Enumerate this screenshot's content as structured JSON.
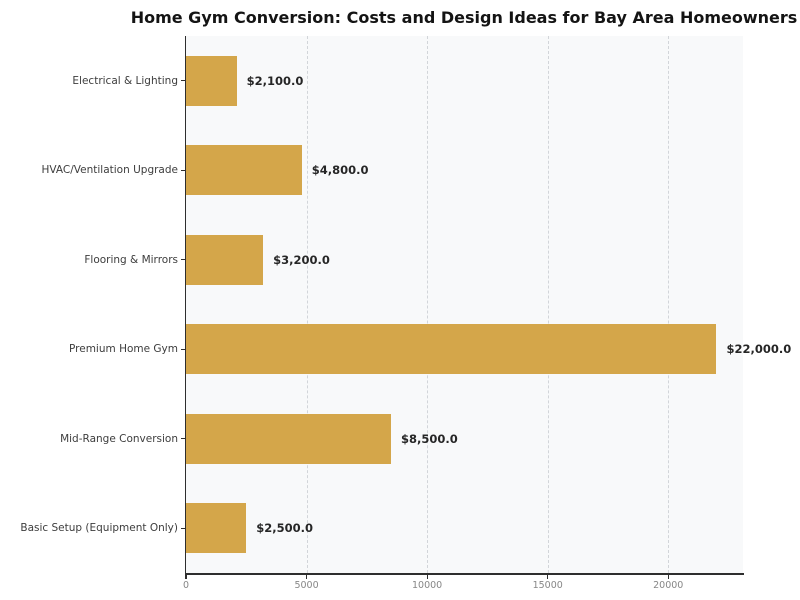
{
  "chart_data": {
    "type": "bar",
    "orientation": "horizontal",
    "title": "Home Gym Conversion: Costs and Design Ideas for Bay Area Homeowners",
    "xlabel": "",
    "ylabel": "",
    "categories": [
      "Electrical & Lighting",
      "HVAC/Ventilation Upgrade",
      "Flooring & Mirrors",
      "Premium Home Gym",
      "Mid-Range Conversion",
      "Basic Setup (Equipment Only)"
    ],
    "values": [
      2100,
      4800,
      3200,
      22000,
      8500,
      2500
    ],
    "value_labels": [
      "$2,100.0",
      "$4,800.0",
      "$3,200.0",
      "$22,000.0",
      "$8,500.0",
      "$2,500.0"
    ],
    "xlim": [
      0,
      23100
    ],
    "x_ticks": [
      0,
      5000,
      10000,
      15000,
      20000
    ],
    "x_tick_labels": [
      "0",
      "5000",
      "10000",
      "15000",
      "20000"
    ],
    "grid": "vertical-dashed",
    "legend": "none",
    "bar_color": "#d4a64a",
    "plot_background": "#f8f9fa",
    "figure_background": "#ffffff",
    "spine_color": "#2e2e2e",
    "gridline_color": "#d2d5d9",
    "value_label_color": "#262626",
    "category_label_color": "#3d3d3d",
    "tick_label_color": "#878787"
  }
}
